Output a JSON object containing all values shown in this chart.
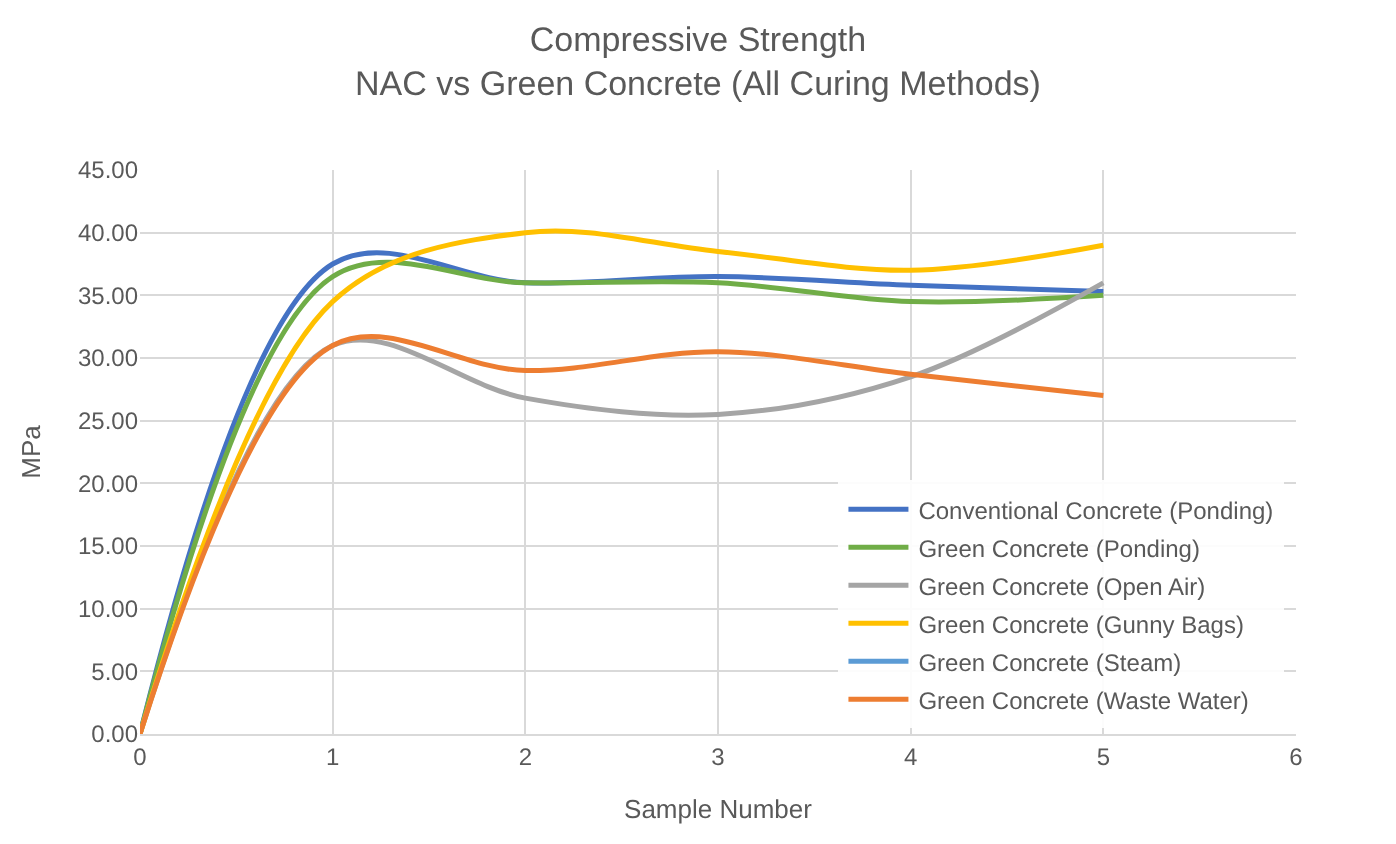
{
  "chart_data": {
    "type": "line",
    "title": "Compressive Strength",
    "subtitle": "NAC vs Green Concrete (All Curing Methods)",
    "xlabel": "Sample Number",
    "ylabel": "MPa",
    "x": [
      0,
      1,
      2,
      3,
      4,
      5
    ],
    "xlim": [
      0,
      6
    ],
    "xticks": [
      0,
      1,
      2,
      3,
      4,
      5,
      6
    ],
    "ylim": [
      0,
      45
    ],
    "yticks": [
      {
        "value": 0,
        "label": "0.00"
      },
      {
        "value": 5,
        "label": "5.00"
      },
      {
        "value": 10,
        "label": "10.00"
      },
      {
        "value": 15,
        "label": "15.00"
      },
      {
        "value": 20,
        "label": "20.00"
      },
      {
        "value": 25,
        "label": "25.00"
      },
      {
        "value": 30,
        "label": "30.00"
      },
      {
        "value": 35,
        "label": "35.00"
      },
      {
        "value": 40,
        "label": "40.00"
      },
      {
        "value": 45,
        "label": "45.00"
      }
    ],
    "grid": true,
    "legend": "bottom right",
    "marker": "none",
    "line_style": "solid",
    "series": [
      {
        "name": "Conventional Concrete (Ponding)",
        "color": "#4472c4",
        "values": [
          0,
          37.5,
          36,
          36.5,
          35.8,
          35.3
        ]
      },
      {
        "name": "Green Concrete (Ponding)",
        "color": "#70ad47",
        "values": [
          0,
          36.5,
          36,
          36,
          34.5,
          35
        ]
      },
      {
        "name": "Green Concrete (Open Air)",
        "color": "#a5a5a5",
        "values": [
          0,
          31,
          26.8,
          25.5,
          28.5,
          36
        ]
      },
      {
        "name": "Green Concrete (Gunny Bags)",
        "color": "#ffc000",
        "values": [
          0,
          34.5,
          40,
          38.5,
          37,
          39
        ]
      },
      {
        "name": "Green Concrete (Steam)",
        "color": "#5b9bd5",
        "values": [
          null,
          null,
          null,
          null,
          null,
          null
        ]
      },
      {
        "name": "Green Concrete (Waste Water)",
        "color": "#ed7d31",
        "values": [
          0,
          31,
          29,
          30.5,
          28.7,
          27
        ]
      }
    ]
  }
}
